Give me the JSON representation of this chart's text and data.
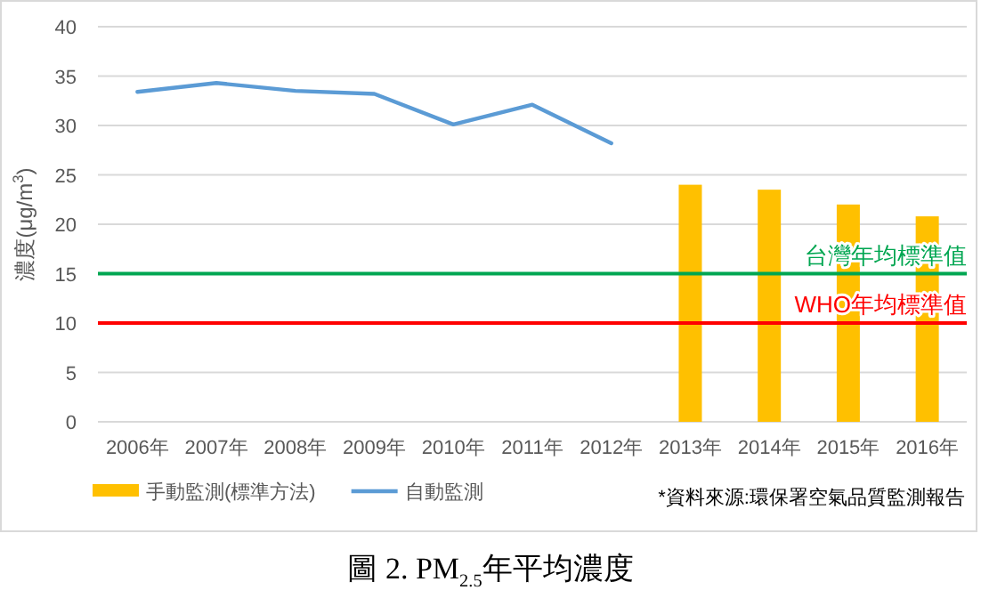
{
  "chart_data": {
    "type": "bar",
    "title": "圖 2. PM$_{2.5}$年平均濃度",
    "ylabel": "濃度(μg/m$^{3}$)",
    "categories": [
      "2006年",
      "2007年",
      "2008年",
      "2009年",
      "2010年",
      "2011年",
      "2012年",
      "2013年",
      "2014年",
      "2015年",
      "2016年"
    ],
    "series": [
      {
        "name": "手動監測(標準方法)",
        "color": "#ffc000",
        "values": [
          null,
          null,
          null,
          null,
          null,
          null,
          null,
          24.0,
          23.5,
          22.0,
          20.8
        ]
      },
      {
        "name": "自動監測",
        "type": "line",
        "color": "#5b9bd5",
        "values": [
          33.4,
          34.3,
          33.5,
          33.2,
          30.1,
          32.1,
          28.2,
          null,
          null,
          null,
          null
        ]
      }
    ],
    "ylim": [
      0,
      40
    ],
    "yticks": [
      0,
      5,
      10,
      15,
      20,
      25,
      30,
      35,
      40
    ],
    "grid": "y",
    "legend": "bottom left",
    "ref_lines": [
      {
        "axis": "y",
        "value": 15,
        "label": "台灣年均標準值",
        "color": "#00a651"
      },
      {
        "axis": "y",
        "value": 10,
        "label": "WHO年均標準值",
        "color": "#ff0000"
      }
    ],
    "annotations": [
      "*資料來源:環保署空氣品質監測報告"
    ]
  }
}
